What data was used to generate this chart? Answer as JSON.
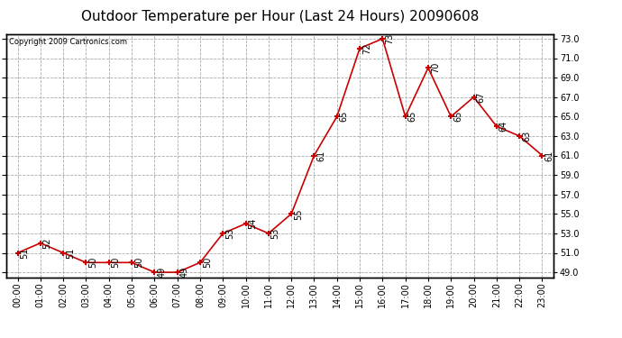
{
  "title": "Outdoor Temperature per Hour (Last 24 Hours) 20090608",
  "copyright": "Copyright 2009 Cartronics.com",
  "hours": [
    "00:00",
    "01:00",
    "02:00",
    "03:00",
    "04:00",
    "05:00",
    "06:00",
    "07:00",
    "08:00",
    "09:00",
    "10:00",
    "11:00",
    "12:00",
    "13:00",
    "14:00",
    "15:00",
    "16:00",
    "17:00",
    "18:00",
    "19:00",
    "20:00",
    "21:00",
    "22:00",
    "23:00"
  ],
  "temps": [
    51,
    52,
    51,
    50,
    50,
    50,
    49,
    49,
    50,
    53,
    54,
    53,
    55,
    61,
    65,
    72,
    73,
    65,
    70,
    65,
    67,
    64,
    63,
    61
  ],
  "line_color": "#cc0000",
  "marker": "+",
  "bg_color": "#ffffff",
  "grid_color": "#aaaaaa",
  "ylim_min": 49.0,
  "ylim_max": 73.0,
  "ytick_step": 2.0,
  "title_fontsize": 11,
  "label_fontsize": 7,
  "tick_fontsize": 7,
  "copyright_fontsize": 6
}
